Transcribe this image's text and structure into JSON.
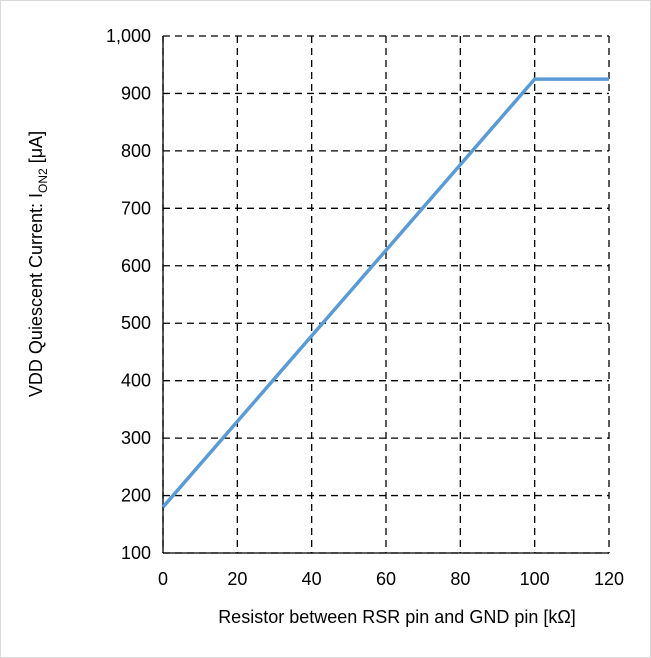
{
  "chart_data": {
    "type": "line",
    "title": "",
    "xlabel": "Resistor between RSR pin and GND pin [kΩ]",
    "ylabel": {
      "prefix": "VDD Quiescent Current: I",
      "subscript": "ON2",
      "suffix": " [μA]"
    },
    "xlim": [
      0,
      120
    ],
    "ylim": [
      100,
      1000
    ],
    "xticks": [
      "0",
      "20",
      "40",
      "60",
      "80",
      "100",
      "120"
    ],
    "yticks": [
      "100",
      "200",
      "300",
      "400",
      "500",
      "600",
      "700",
      "800",
      "900",
      "1,000"
    ],
    "grid": true,
    "grid_style": "dashed",
    "legend": "none",
    "series": [
      {
        "color": "#5b9bd5",
        "x": [
          0,
          100,
          120
        ],
        "y": [
          180,
          925,
          925
        ]
      }
    ]
  }
}
